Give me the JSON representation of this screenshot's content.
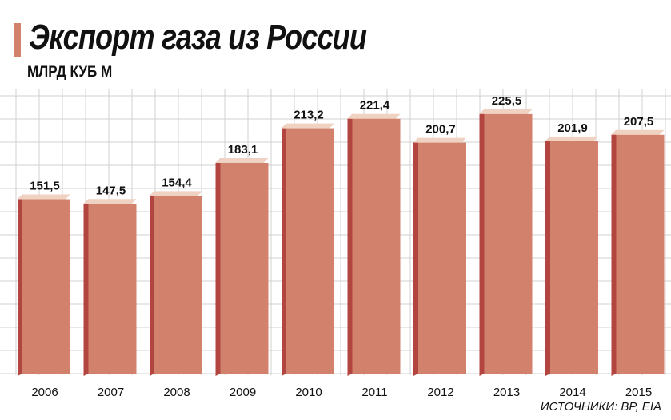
{
  "chart_data": {
    "type": "bar",
    "title": "Экспорт газа из России",
    "subtitle": "МЛРД КУБ М",
    "categories": [
      "2006",
      "2007",
      "2008",
      "2009",
      "2010",
      "2011",
      "2012",
      "2013",
      "2014",
      "2015"
    ],
    "values": [
      151.5,
      147.5,
      154.4,
      183.1,
      213.2,
      221.4,
      200.7,
      225.5,
      201.9,
      207.5
    ],
    "value_labels": [
      "151,5",
      "147,5",
      "154,4",
      "183,1",
      "213,2",
      "221,4",
      "200,7",
      "225,5",
      "201,9",
      "207,5"
    ],
    "xlabel": "",
    "ylabel": "",
    "ylim": [
      0,
      260
    ],
    "grid": true,
    "source": "ИСТОЧНИКИ: BP, EIA",
    "colors": {
      "bar_front": "#d2826c",
      "bar_side": "#b34540",
      "bar_top": "#f0d2c2",
      "grid": "#d0d0d0",
      "accent": "#d2826c"
    }
  }
}
